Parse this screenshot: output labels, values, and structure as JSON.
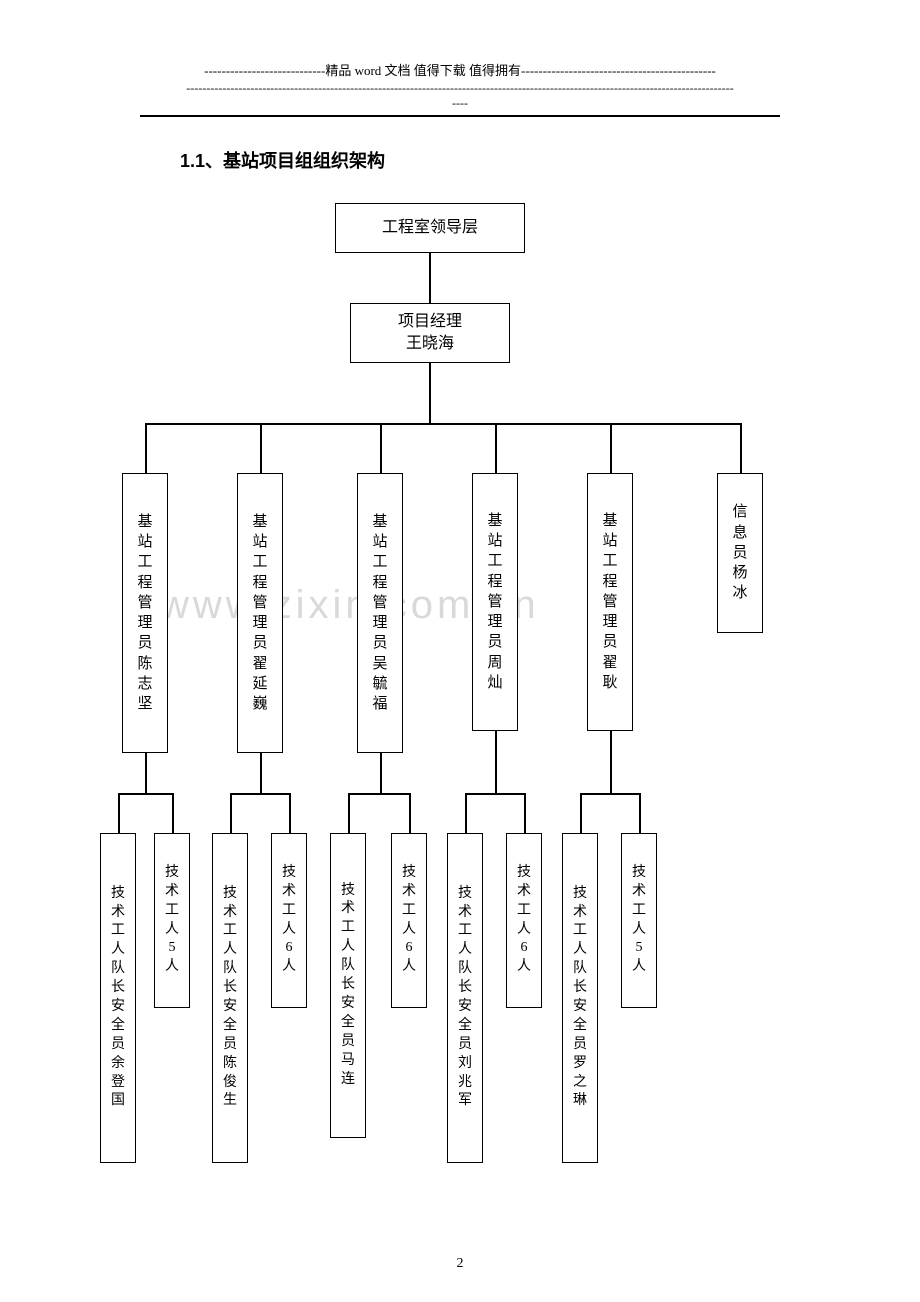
{
  "header": {
    "line1": "----------------------------精品 word 文档  值得下载  值得拥有---------------------------------------------",
    "line2": "-----------------------------------------------------------------------------------------------------------------------------------------",
    "line3": "----"
  },
  "section_title": "1.1、基站项目组组织架构",
  "watermark": "www.zixin.com.cn",
  "page_number": "2",
  "chart": {
    "type": "tree",
    "background_color": "#ffffff",
    "border_color": "#000000",
    "line_color": "#000000",
    "text_color": "#000000",
    "font_size": 16,
    "top": {
      "label": "工程室领导层"
    },
    "pm": {
      "line1": "项目经理",
      "line2": "王晓海"
    },
    "managers": [
      {
        "label": "基站工程管理员陈志坚"
      },
      {
        "label": "基站工程管理员翟延巍"
      },
      {
        "label": "基站工程管理员吴毓福"
      },
      {
        "label": "基站工程管理员周灿"
      },
      {
        "label": "基站工程管理员翟耿"
      },
      {
        "label": "信息员杨冰"
      }
    ],
    "teams": [
      {
        "leader": "技术工人队长安全员余登国",
        "workers": "技术工人5人"
      },
      {
        "leader": "技术工人队长安全员陈俊生",
        "workers": "技术工人6人"
      },
      {
        "leader": "技术工人队长安全员马连",
        "workers": "技术工人6人"
      },
      {
        "leader": "技术工人队长安全员刘兆军",
        "workers": "技术工人6人"
      },
      {
        "leader": "技术工人队长安全员罗之琳",
        "workers": "技术工人5人"
      }
    ]
  }
}
